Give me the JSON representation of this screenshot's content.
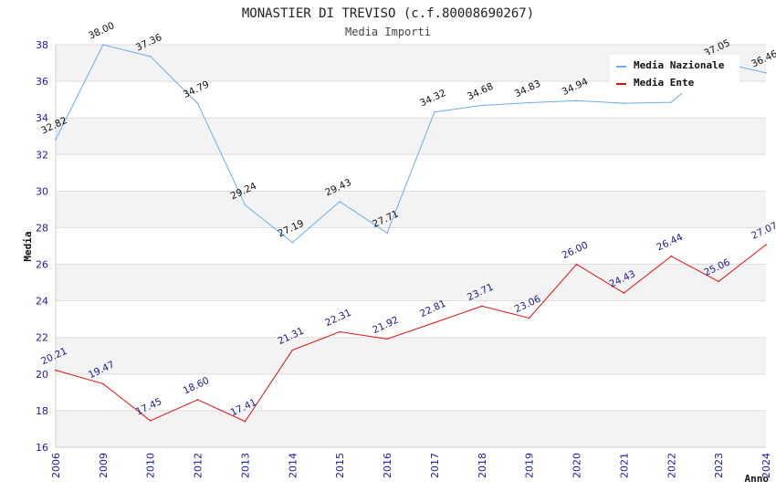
{
  "chart_data": {
    "type": "line",
    "title": "MONASTIER DI TREVISO (c.f.80008690267)",
    "subtitle": "Media Importi",
    "xlabel": "Anno",
    "ylabel": "Media",
    "ylim": [
      16,
      38
    ],
    "yticks": [
      16,
      18,
      20,
      22,
      24,
      26,
      28,
      30,
      32,
      34,
      36,
      38
    ],
    "categories": [
      "2006",
      "2009",
      "2010",
      "2012",
      "2013",
      "2014",
      "2015",
      "2016",
      "2017",
      "2018",
      "2019",
      "2020",
      "2021",
      "2022",
      "2023",
      "2024"
    ],
    "series": [
      {
        "name": "Media Nazionale",
        "color": "#6aaee8",
        "label_color": "#111111",
        "values": [
          32.82,
          38.0,
          37.36,
          34.79,
          29.24,
          27.19,
          29.43,
          27.71,
          34.32,
          34.68,
          34.83,
          34.94,
          34.8,
          34.85,
          37.05,
          36.46
        ],
        "labels": [
          "32.82",
          "38.00",
          "37.36",
          "34.79",
          "29.24",
          "27.19",
          "29.43",
          "27.71",
          "34.32",
          "34.68",
          "34.83",
          "34.94",
          "",
          "",
          "37.05",
          "36.46"
        ]
      },
      {
        "name": "Media Ente",
        "color": "#e01010",
        "label_color": "#1a1a8c",
        "values": [
          20.21,
          19.47,
          17.45,
          18.6,
          17.41,
          21.31,
          22.31,
          21.92,
          22.81,
          23.71,
          23.06,
          26.0,
          24.43,
          26.44,
          25.06,
          27.07
        ],
        "labels": [
          "20.21",
          "19.47",
          "17.45",
          "18.60",
          "17.41",
          "21.31",
          "22.31",
          "21.92",
          "22.81",
          "23.71",
          "23.06",
          "26.00",
          "24.43",
          "26.44",
          "25.06",
          "27.07"
        ]
      }
    ],
    "legend_position": "top-right",
    "grid": true
  }
}
